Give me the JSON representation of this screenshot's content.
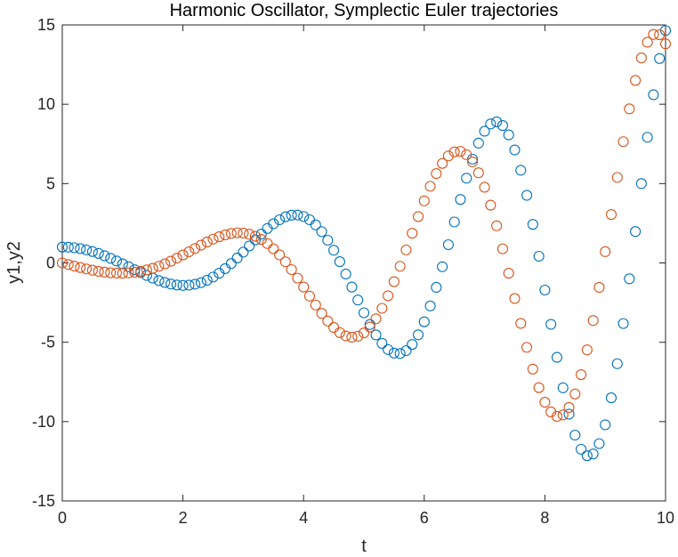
{
  "chart_data": {
    "type": "scatter",
    "title": "Harmonic Oscillator, Symplectic Euler trajectories",
    "xlabel": "t",
    "ylabel": "y1,y2",
    "xlim": [
      0,
      10
    ],
    "ylim": [
      -15,
      15
    ],
    "xticks": [
      0,
      2,
      4,
      6,
      8,
      10
    ],
    "yticks": [
      -15,
      -10,
      -5,
      0,
      5,
      10,
      15
    ],
    "grid": false,
    "legend": "none",
    "marker": "open-circle",
    "dt": 0.1,
    "series": [
      {
        "color": "#0072BD",
        "x": [
          0,
          0.1,
          0.2,
          0.3,
          0.4,
          0.5,
          0.6,
          0.7,
          0.8,
          0.9,
          1,
          1.1,
          1.2,
          1.3,
          1.4,
          1.5,
          1.6,
          1.7,
          1.8,
          1.9,
          2,
          2.1,
          2.2,
          2.3,
          2.4,
          2.5,
          2.6,
          2.7,
          2.8,
          2.9,
          3,
          3.1,
          3.2,
          3.3,
          3.4,
          3.5,
          3.6,
          3.7,
          3.8,
          3.9,
          4,
          4.1,
          4.2,
          4.3,
          4.4,
          4.5,
          4.6,
          4.7,
          4.8,
          4.9,
          5,
          5.1,
          5.2,
          5.3,
          5.4,
          5.5,
          5.6,
          5.7,
          5.8,
          5.9,
          6,
          6.1,
          6.2,
          6.3,
          6.4,
          6.5,
          6.6,
          6.7,
          6.8,
          6.9,
          7,
          7.1,
          7.2,
          7.3,
          7.4,
          7.5,
          7.6,
          7.7,
          7.8,
          7.9,
          8,
          8.1,
          8.2,
          8.3,
          8.4,
          8.5,
          8.6,
          8.7,
          8.8,
          8.9,
          9,
          9.1,
          9.2,
          9.3,
          9.4,
          9.5,
          9.6,
          9.7,
          9.8,
          9.9,
          10
        ],
        "y": [
          1,
          0.99,
          0.96,
          0.9,
          0.82,
          0.72,
          0.6,
          0.45,
          0.29,
          0.12,
          -0.06,
          -0.24,
          -0.43,
          -0.61,
          -0.79,
          -0.96,
          -1.11,
          -1.23,
          -1.33,
          -1.39,
          -1.42,
          -1.4,
          -1.34,
          -1.24,
          -1.09,
          -0.89,
          -0.65,
          -0.36,
          -0.04,
          0.31,
          0.68,
          1.07,
          1.45,
          1.82,
          2.17,
          2.47,
          2.72,
          2.91,
          3.01,
          3.02,
          2.93,
          2.72,
          2.4,
          1.97,
          1.43,
          0.8,
          0.08,
          -0.7,
          -1.52,
          -2.34,
          -3.14,
          -3.88,
          -4.54,
          -5.07,
          -5.46,
          -5.68,
          -5.71,
          -5.53,
          -5.14,
          -4.53,
          -3.71,
          -2.71,
          -1.54,
          -0.24,
          1.15,
          2.58,
          4.0,
          5.34,
          6.54,
          7.55,
          8.3,
          8.76,
          8.89,
          8.66,
          8.07,
          7.12,
          5.84,
          4.26,
          2.43,
          0.42,
          -1.71,
          -3.87,
          -5.95,
          -7.87,
          -9.53,
          -10.85,
          -11.74,
          -12.15,
          -12.04,
          -11.39,
          -10.2,
          -8.5,
          -6.35,
          -3.82,
          -1.0,
          1.98,
          5.0,
          7.92,
          10.6,
          12.88,
          14.65
        ]
      },
      {
        "color": "#D95319",
        "x": [
          0,
          0.1,
          0.2,
          0.3,
          0.4,
          0.5,
          0.6,
          0.7,
          0.8,
          0.9,
          1,
          1.1,
          1.2,
          1.3,
          1.4,
          1.5,
          1.6,
          1.7,
          1.8,
          1.9,
          2,
          2.1,
          2.2,
          2.3,
          2.4,
          2.5,
          2.6,
          2.7,
          2.8,
          2.9,
          3,
          3.1,
          3.2,
          3.3,
          3.4,
          3.5,
          3.6,
          3.7,
          3.8,
          3.9,
          4,
          4.1,
          4.2,
          4.3,
          4.4,
          4.5,
          4.6,
          4.7,
          4.8,
          4.9,
          5,
          5.1,
          5.2,
          5.3,
          5.4,
          5.5,
          5.6,
          5.7,
          5.8,
          5.9,
          6,
          6.1,
          6.2,
          6.3,
          6.4,
          6.5,
          6.6,
          6.7,
          6.8,
          6.9,
          7,
          7.1,
          7.2,
          7.3,
          7.4,
          7.5,
          7.6,
          7.7,
          7.8,
          7.9,
          8,
          8.1,
          8.2,
          8.3,
          8.4,
          8.5,
          8.6,
          8.7,
          8.8,
          8.9,
          9,
          9.1,
          9.2,
          9.3,
          9.4,
          9.5,
          9.6,
          9.7,
          9.8,
          9.9,
          10
        ],
        "y": [
          0,
          -0.1,
          -0.2,
          -0.29,
          -0.38,
          -0.46,
          -0.53,
          -0.58,
          -0.62,
          -0.64,
          -0.65,
          -0.63,
          -0.59,
          -0.53,
          -0.44,
          -0.34,
          -0.21,
          -0.06,
          0.11,
          0.3,
          0.5,
          0.7,
          0.91,
          1.12,
          1.32,
          1.5,
          1.65,
          1.77,
          1.86,
          1.9,
          1.88,
          1.81,
          1.68,
          1.48,
          1.22,
          0.89,
          0.51,
          0.07,
          -0.42,
          -0.96,
          -1.52,
          -2.09,
          -2.65,
          -3.18,
          -3.66,
          -4.07,
          -4.39,
          -4.6,
          -4.68,
          -4.62,
          -4.41,
          -4.04,
          -3.52,
          -2.86,
          -2.07,
          -1.18,
          -0.21,
          0.82,
          1.87,
          2.92,
          3.91,
          4.83,
          5.63,
          6.27,
          6.74,
          7.0,
          7.03,
          6.82,
          6.37,
          5.68,
          4.77,
          3.64,
          2.34,
          0.89,
          -0.65,
          -2.24,
          -3.81,
          -5.32,
          -6.69,
          -7.86,
          -8.78,
          -9.39,
          -9.67,
          -9.58,
          -9.11,
          -8.26,
          -7.04,
          -5.48,
          -3.63,
          -1.54,
          0.71,
          3.05,
          5.39,
          7.64,
          9.71,
          11.5,
          12.92,
          13.91,
          14.4,
          14.38,
          13.81
        ]
      }
    ]
  }
}
